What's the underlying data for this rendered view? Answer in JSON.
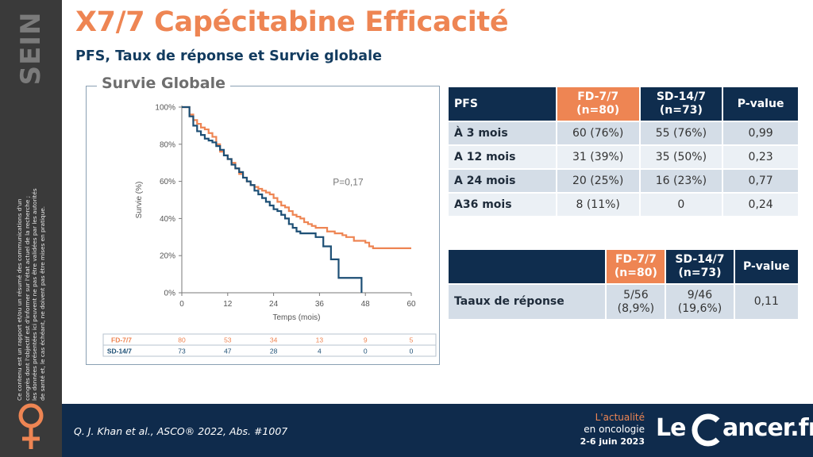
{
  "sidebar": {
    "word": "SEIN",
    "disclaimer": "Ce contenu est un rapport et/ou un résumé des communications d'un congrès dont l'objectif est d'informer sur l'état actuel de la recherche ; les données présentées ici peuvent ne pas être validées par les autorités de santé et, le cas échéant, ne doivent pas être mises en pratique."
  },
  "header": {
    "title": "X7/7 Capécitabine Efficacité",
    "subtitle": "PFS, Taux de réponse et Survie globale"
  },
  "chart_data": {
    "type": "line",
    "title": "Survie Globale",
    "xlabel": "Temps (mois)",
    "ylabel": "Survie (%)",
    "xlim": [
      0,
      60
    ],
    "ylim": [
      0,
      100
    ],
    "x_ticks": [
      0,
      12,
      24,
      36,
      48,
      60
    ],
    "y_ticks": [
      "0%",
      "20%",
      "40%",
      "60%",
      "80%",
      "100%"
    ],
    "annotation": "P=0,17",
    "colors": {
      "fd": "#ee8553",
      "sd": "#1d4f75"
    },
    "series": [
      {
        "name": "FD-7/7",
        "points": [
          [
            0,
            100
          ],
          [
            1,
            100
          ],
          [
            2,
            96
          ],
          [
            3,
            93
          ],
          [
            4,
            91
          ],
          [
            5,
            89
          ],
          [
            6,
            88
          ],
          [
            7,
            86
          ],
          [
            8,
            84
          ],
          [
            9,
            80
          ],
          [
            10,
            76
          ],
          [
            11,
            74
          ],
          [
            12,
            72
          ],
          [
            13,
            70
          ],
          [
            14,
            67
          ],
          [
            15,
            64
          ],
          [
            16,
            62
          ],
          [
            17,
            60
          ],
          [
            18,
            58
          ],
          [
            19,
            57
          ],
          [
            20,
            56
          ],
          [
            21,
            55
          ],
          [
            22,
            54
          ],
          [
            23,
            53
          ],
          [
            24,
            51
          ],
          [
            25,
            49
          ],
          [
            26,
            47
          ],
          [
            27,
            46
          ],
          [
            28,
            44
          ],
          [
            29,
            42
          ],
          [
            30,
            41
          ],
          [
            31,
            40
          ],
          [
            32,
            38
          ],
          [
            33,
            37
          ],
          [
            34,
            36
          ],
          [
            35,
            35
          ],
          [
            36,
            35
          ],
          [
            37,
            35
          ],
          [
            38,
            33
          ],
          [
            39,
            33
          ],
          [
            40,
            32
          ],
          [
            41,
            32
          ],
          [
            42,
            31
          ],
          [
            43,
            30
          ],
          [
            44,
            30
          ],
          [
            45,
            28
          ],
          [
            46,
            28
          ],
          [
            47,
            28
          ],
          [
            48,
            27
          ],
          [
            49,
            25
          ],
          [
            50,
            24
          ],
          [
            52,
            24
          ],
          [
            56,
            24
          ],
          [
            60,
            24
          ]
        ]
      },
      {
        "name": "SD-14/7",
        "points": [
          [
            0,
            100
          ],
          [
            1,
            100
          ],
          [
            2,
            95
          ],
          [
            3,
            90
          ],
          [
            4,
            87
          ],
          [
            5,
            85
          ],
          [
            6,
            83
          ],
          [
            7,
            82
          ],
          [
            8,
            81
          ],
          [
            9,
            79
          ],
          [
            10,
            77
          ],
          [
            11,
            74
          ],
          [
            12,
            72
          ],
          [
            13,
            69
          ],
          [
            14,
            67
          ],
          [
            15,
            65
          ],
          [
            16,
            62
          ],
          [
            17,
            60
          ],
          [
            18,
            58
          ],
          [
            19,
            55
          ],
          [
            20,
            53
          ],
          [
            21,
            51
          ],
          [
            22,
            49
          ],
          [
            23,
            47
          ],
          [
            24,
            45
          ],
          [
            25,
            44
          ],
          [
            26,
            42
          ],
          [
            27,
            40
          ],
          [
            28,
            37
          ],
          [
            29,
            35
          ],
          [
            30,
            33
          ],
          [
            31,
            32
          ],
          [
            32,
            32
          ],
          [
            34,
            32
          ],
          [
            35,
            30
          ],
          [
            36,
            30
          ],
          [
            37,
            25
          ],
          [
            38,
            25
          ],
          [
            39,
            18
          ],
          [
            40,
            18
          ],
          [
            41,
            8
          ],
          [
            43,
            8
          ],
          [
            47,
            8
          ],
          [
            47,
            0
          ]
        ]
      }
    ],
    "at_risk": {
      "times": [
        0,
        12,
        24,
        36,
        48,
        60
      ],
      "rows": [
        {
          "name": "FD-7/7",
          "values": [
            80,
            53,
            34,
            13,
            9,
            5
          ]
        },
        {
          "name": "SD-14/7",
          "values": [
            73,
            47,
            28,
            4,
            0,
            0
          ]
        }
      ]
    }
  },
  "pfs_table": {
    "headers": [
      "PFS",
      "FD-7/7 (n=80)",
      "SD-14/7 (n=73)",
      "P-value"
    ],
    "rows": [
      [
        "À 3 mois",
        "60 (76%)",
        "55 (76%)",
        "0,99"
      ],
      [
        "A 12 mois",
        "31 (39%)",
        "35 (50%)",
        "0,23"
      ],
      [
        "A 24 mois",
        "20 (25%)",
        "16 (23%)",
        "0,77"
      ],
      [
        "A36 mois",
        "8 (11%)",
        "0",
        "0,24"
      ]
    ]
  },
  "response_table": {
    "headers": [
      "",
      "FD-7/7 (n=80)",
      "SD-14/7 (n=73)",
      "P-value"
    ],
    "row": {
      "label": "Taaux de réponse",
      "fd": "5/56 (8,9%)",
      "sd": "9/46 (19,6%)",
      "p": "0,11"
    }
  },
  "footer": {
    "reference": "Q. J. Khan et al., ASCO® 2022, Abs. #1007",
    "tagline1": "L'actualité",
    "tagline2": "en oncologie",
    "dates": "2-6 juin 2023",
    "logo_le": "Le",
    "logo_rest": "ancer.fr"
  }
}
